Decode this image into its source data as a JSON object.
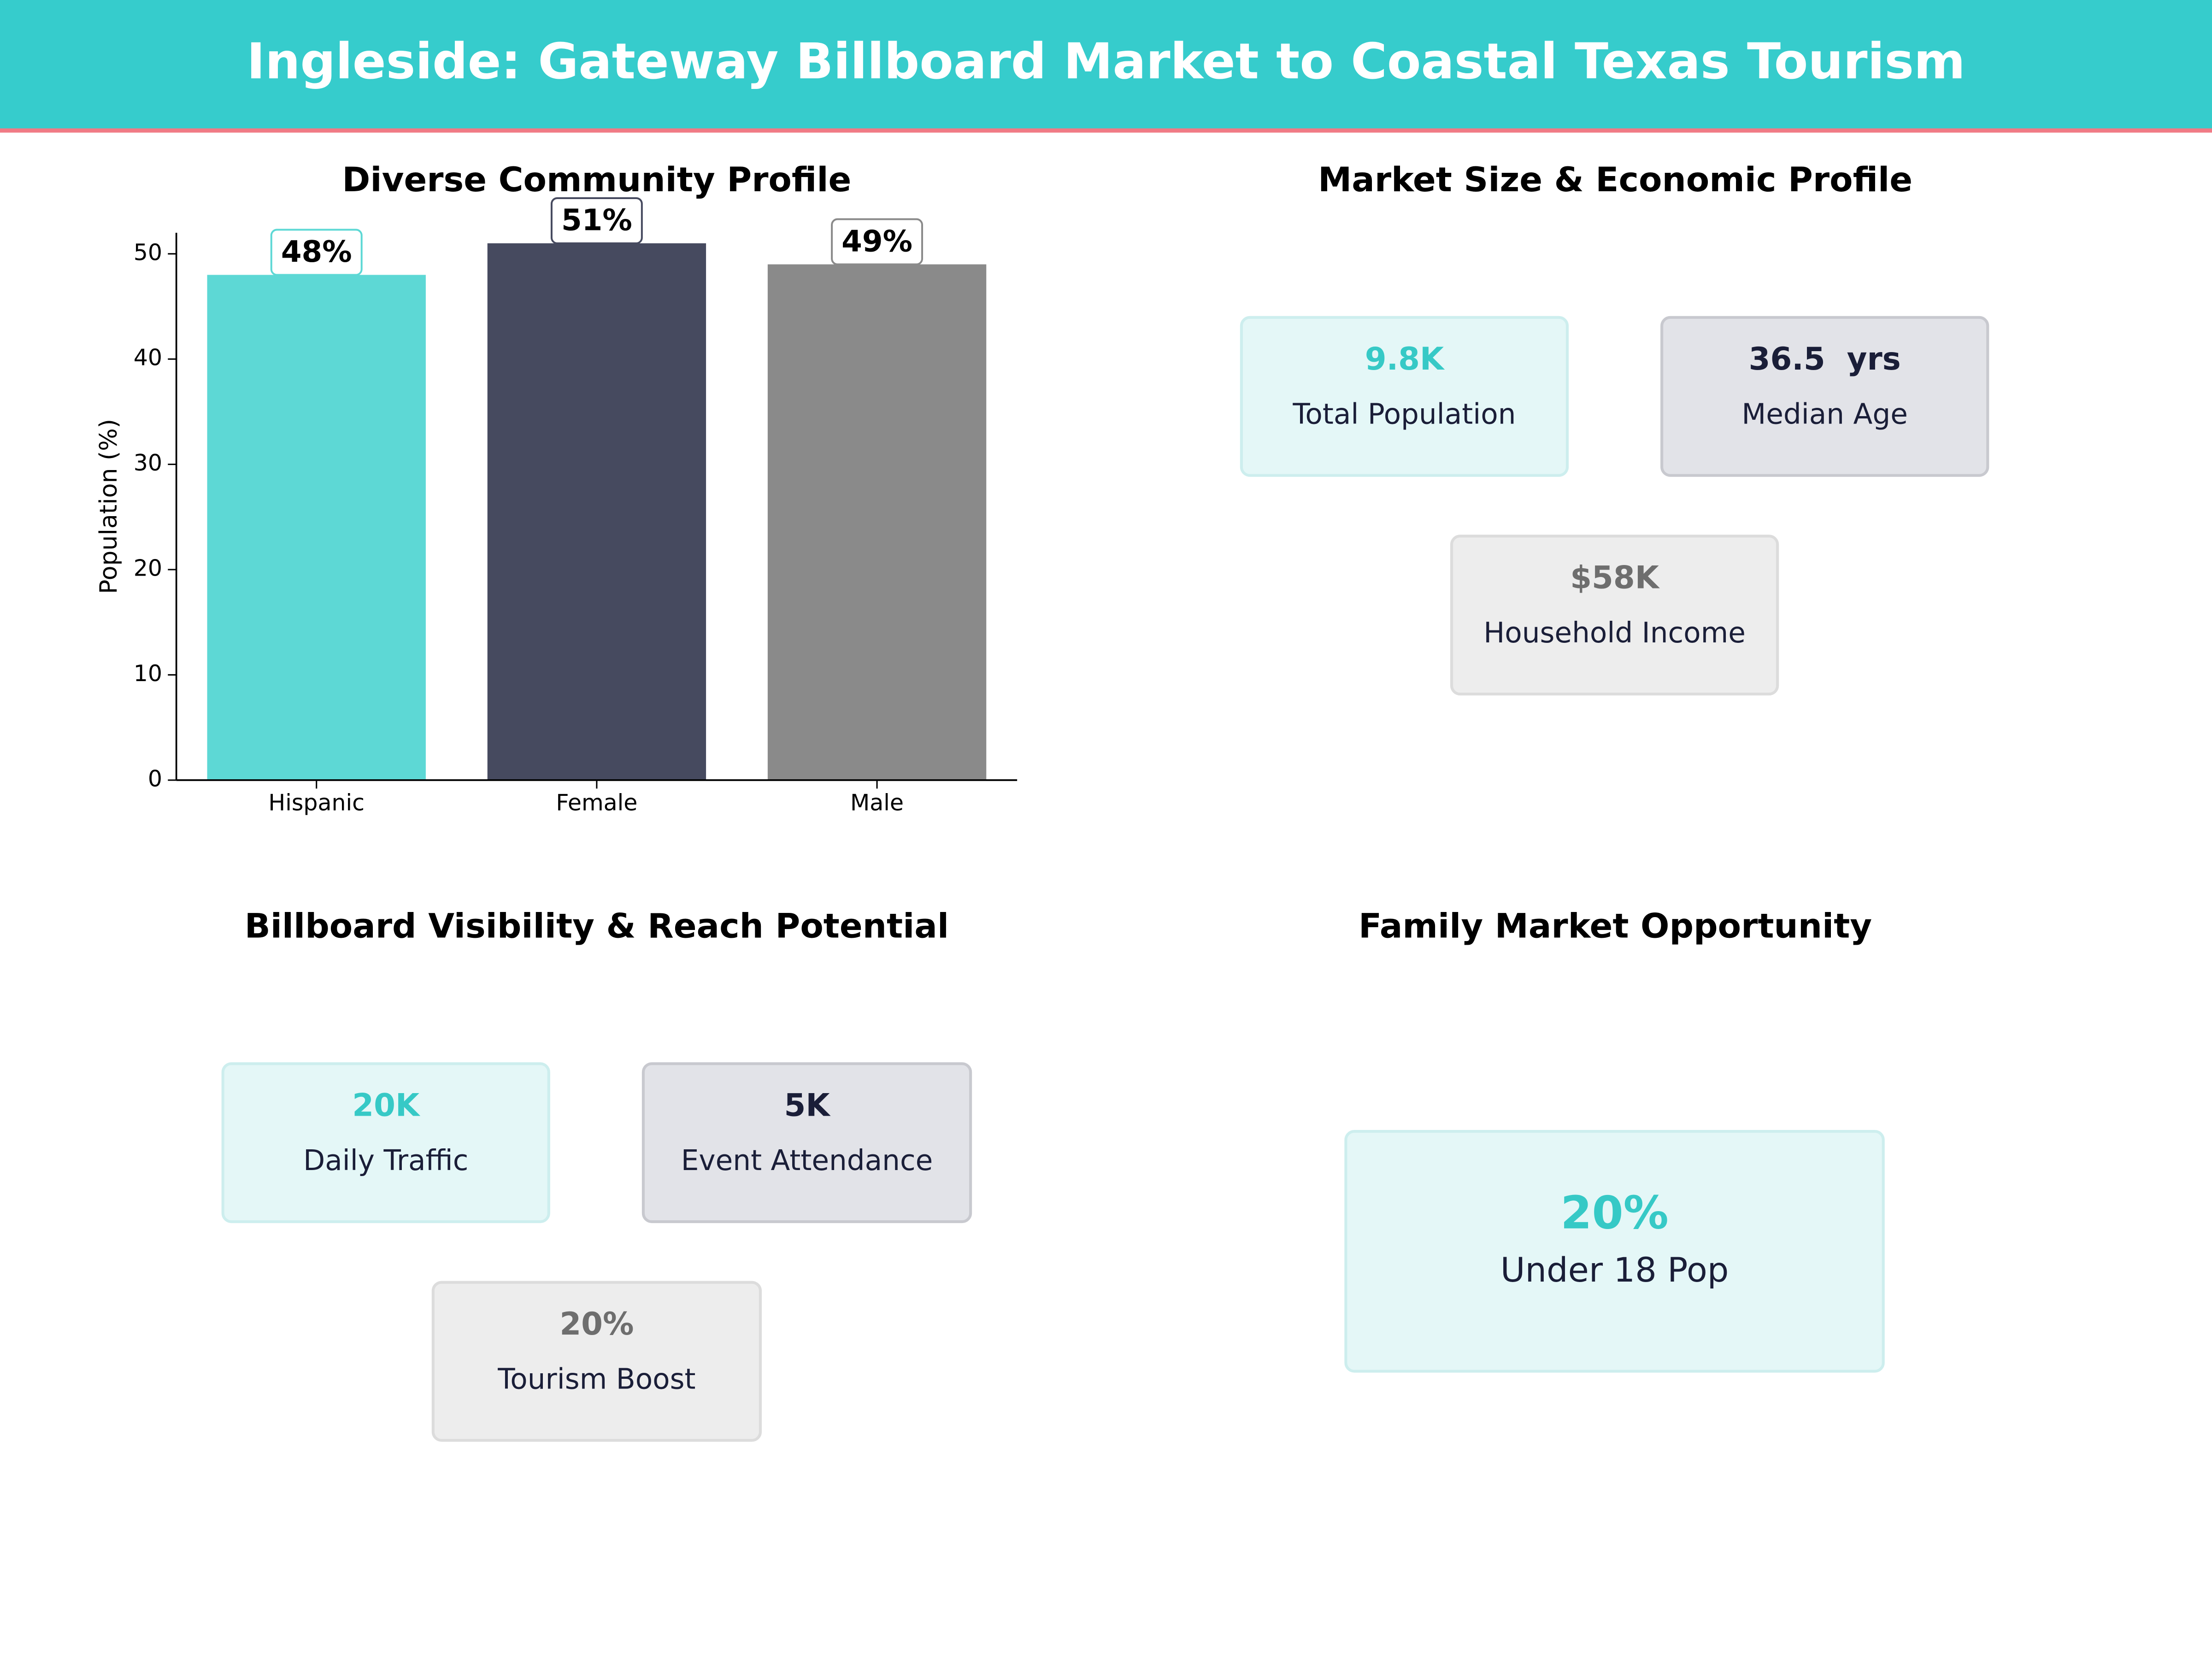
{
  "title": "Ingleside: Gateway Billboard Market to Coastal Texas Tourism",
  "chart_data": {
    "type": "bar",
    "title": "Diverse Community Profile",
    "ylabel": "Population (%)",
    "categories": [
      "Hispanic",
      "Female",
      "Male"
    ],
    "values": [
      48,
      51,
      49
    ],
    "value_labels": [
      "48%",
      "51%",
      "49%"
    ],
    "colors": [
      "#5dd8d5",
      "#464a5f",
      "#8a8a8a"
    ],
    "ylim": [
      0,
      52
    ],
    "yticks": [
      0,
      10,
      20,
      30,
      40,
      50
    ]
  },
  "panels": [
    {
      "title": "Market Size & Economic Profile",
      "cards": [
        {
          "value": "9.8K",
          "label": "Total Population"
        },
        {
          "value": "36.5  yrs",
          "label": "Median Age"
        },
        {
          "value": "$58K",
          "label": "Household Income"
        }
      ]
    },
    {
      "title": "Billboard Visibility & Reach Potential",
      "cards": [
        {
          "value": "20K",
          "label": "Daily Traffic"
        },
        {
          "value": "5K",
          "label": "Event Attendance"
        },
        {
          "value": "20%",
          "label": "Tourism Boost"
        }
      ]
    },
    {
      "title": "Family Market Opportunity",
      "cards": [
        {
          "value": "20%",
          "label": "Under 18 Pop"
        }
      ]
    }
  ]
}
